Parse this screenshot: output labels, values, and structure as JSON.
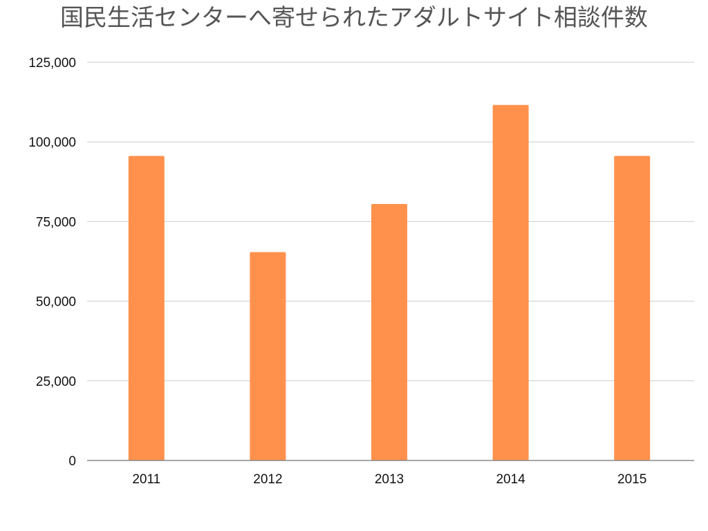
{
  "chart_data": {
    "type": "bar",
    "title": "国民生活センターへ寄せられたアダルトサイト相談件数",
    "xlabel": "",
    "ylabel": "",
    "categories": [
      "2011",
      "2012",
      "2013",
      "2014",
      "2015"
    ],
    "series": [
      {
        "values": [
          95600,
          65400,
          80500,
          111600,
          95600
        ],
        "color": "#ff914d"
      }
    ],
    "ylim": [
      0,
      125000
    ],
    "yticks": [
      0,
      25000,
      50000,
      75000,
      100000,
      125000
    ],
    "ytick_labels": [
      "0",
      "25,000",
      "50,000",
      "75,000",
      "100,000",
      "125,000"
    ],
    "grid": true,
    "legend": "none"
  },
  "colors": {
    "bar": "#ff914d",
    "grid": "#cccccc",
    "axis": "#888888",
    "title": "#555555"
  }
}
